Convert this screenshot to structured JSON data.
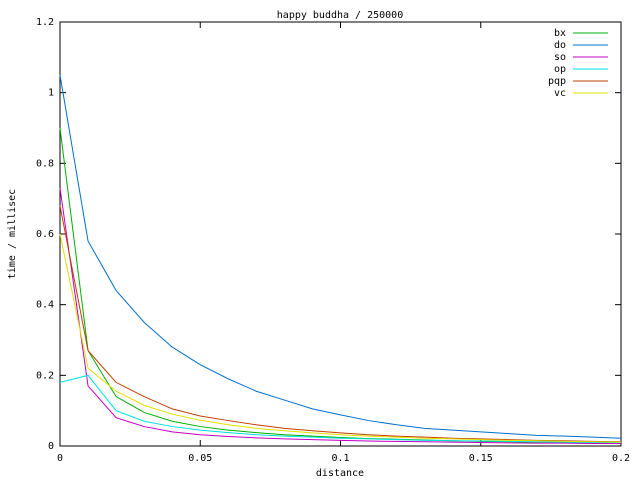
{
  "chart_data": {
    "type": "line",
    "title": "happy buddha / 250000",
    "x_label": "distance",
    "y_label": "time / millisec",
    "x": [
      0,
      0.01,
      0.02,
      0.03,
      0.04,
      0.05,
      0.06,
      0.07,
      0.08,
      0.09,
      0.1,
      0.11,
      0.12,
      0.13,
      0.14,
      0.15,
      0.16,
      0.17,
      0.18,
      0.19,
      0.2
    ],
    "series": [
      {
        "name": "bx",
        "color": "#00b000",
        "values": [
          0.9,
          0.27,
          0.14,
          0.095,
          0.07,
          0.055,
          0.045,
          0.038,
          0.032,
          0.028,
          0.024,
          0.021,
          0.019,
          0.017,
          0.015,
          0.013,
          0.012,
          0.011,
          0.01,
          0.009,
          0.008
        ]
      },
      {
        "name": "do",
        "color": "#0070d0",
        "values": [
          1.05,
          0.58,
          0.44,
          0.35,
          0.28,
          0.23,
          0.19,
          0.155,
          0.13,
          0.105,
          0.088,
          0.072,
          0.06,
          0.05,
          0.045,
          0.04,
          0.035,
          0.03,
          0.028,
          0.025,
          0.022
        ]
      },
      {
        "name": "so",
        "color": "#c000c0",
        "values": [
          0.73,
          0.17,
          0.08,
          0.055,
          0.04,
          0.032,
          0.027,
          0.023,
          0.02,
          0.018,
          0.016,
          0.014,
          0.013,
          0.012,
          0.011,
          0.01,
          0.009,
          0.008,
          0.008,
          0.007,
          0.007
        ]
      },
      {
        "name": "op",
        "color": "#00e0e0",
        "values": [
          0.18,
          0.2,
          0.1,
          0.07,
          0.055,
          0.045,
          0.038,
          0.032,
          0.028,
          0.025,
          0.022,
          0.02,
          0.018,
          0.016,
          0.015,
          0.014,
          0.013,
          0.012,
          0.011,
          0.01,
          0.01
        ]
      },
      {
        "name": "pqp",
        "color": "#c04000",
        "values": [
          0.68,
          0.27,
          0.18,
          0.14,
          0.105,
          0.085,
          0.072,
          0.06,
          0.05,
          0.043,
          0.037,
          0.032,
          0.028,
          0.025,
          0.022,
          0.02,
          0.018,
          0.016,
          0.015,
          0.013,
          0.012
        ]
      },
      {
        "name": "vc",
        "color": "#e0e000",
        "values": [
          0.6,
          0.22,
          0.155,
          0.115,
          0.09,
          0.073,
          0.06,
          0.05,
          0.043,
          0.037,
          0.032,
          0.028,
          0.025,
          0.022,
          0.02,
          0.018,
          0.016,
          0.015,
          0.013,
          0.012,
          0.011
        ]
      }
    ],
    "xlim": [
      0,
      0.2
    ],
    "xticks": [
      0,
      0.05,
      0.1,
      0.15,
      0.2
    ],
    "ylim": [
      0,
      1.2
    ],
    "yticks": [
      0,
      0.2,
      0.4,
      0.6,
      0.8,
      1,
      1.2
    ],
    "legend": "upper right"
  }
}
